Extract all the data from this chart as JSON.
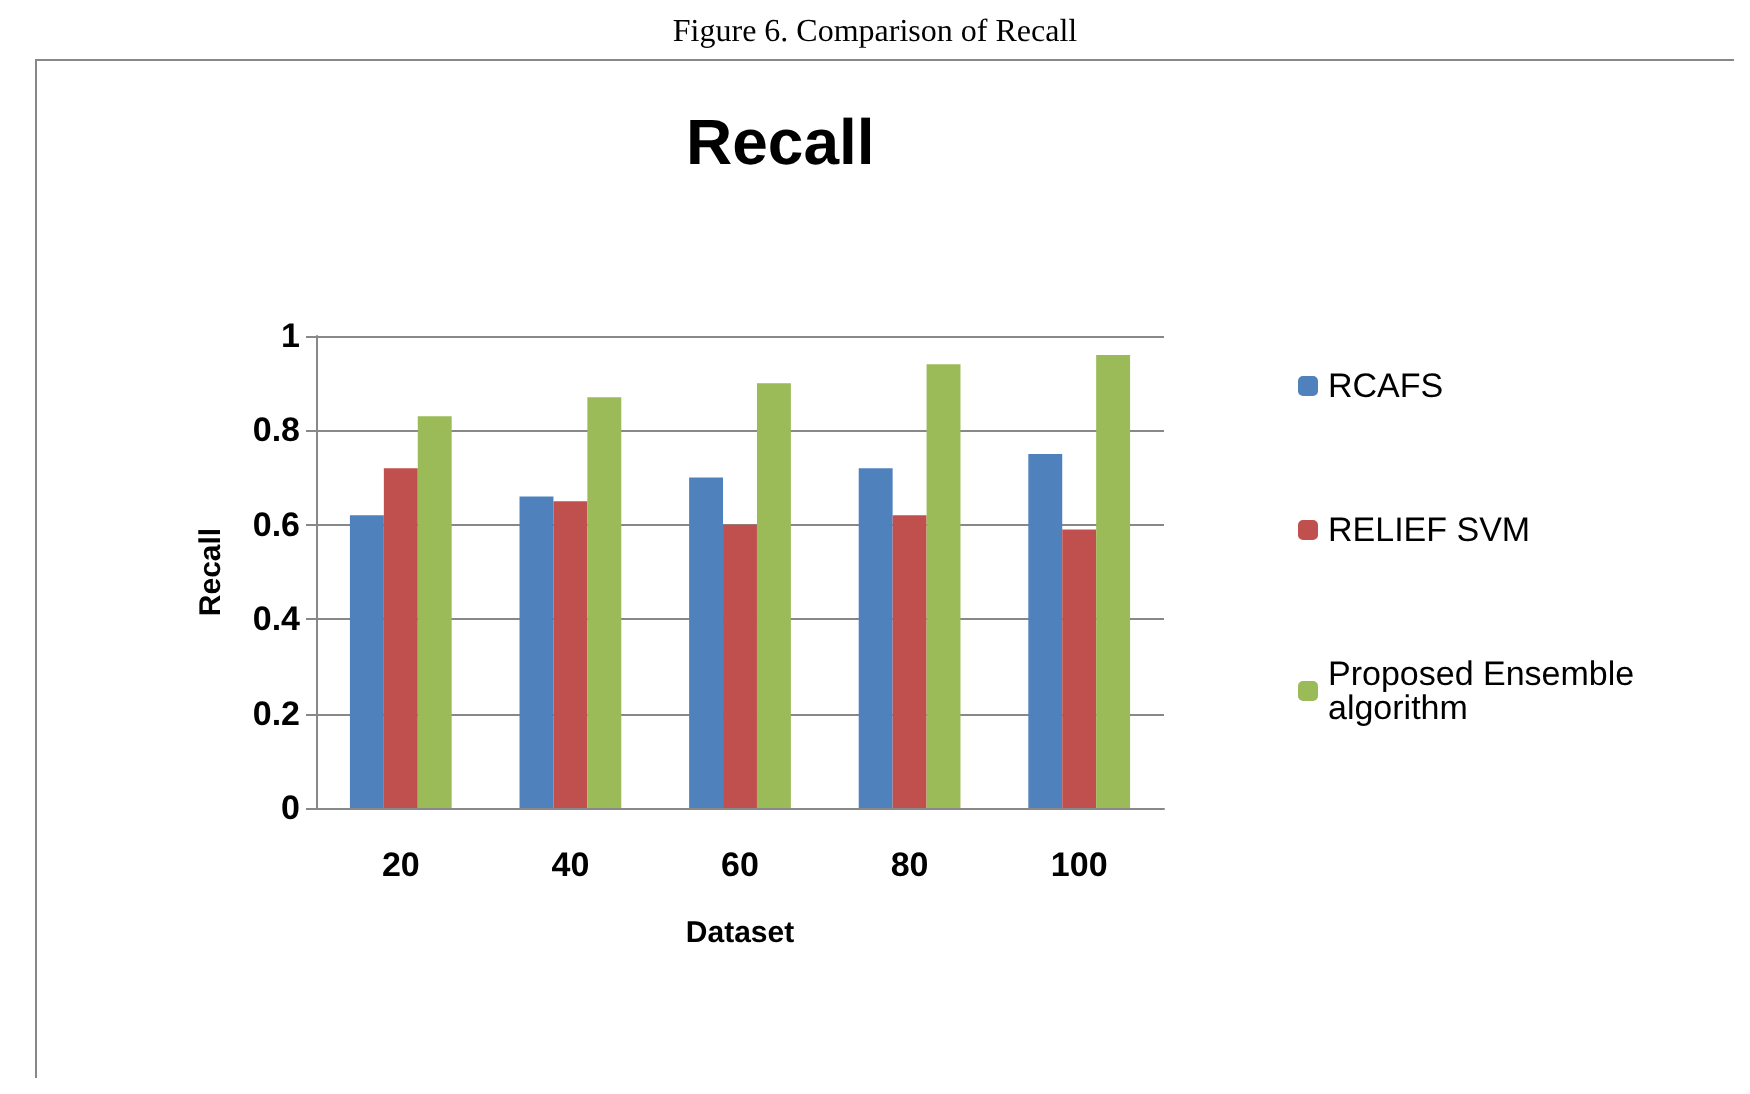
{
  "chart_data": {
    "type": "bar",
    "title": "Recall",
    "xlabel": "Dataset",
    "ylabel": "Recall",
    "annotations": [
      "Figure 6. Comparison of Recall"
    ],
    "categories": [
      "20",
      "40",
      "60",
      "80",
      "100"
    ],
    "series": [
      {
        "name": "RCAFS",
        "color": "#4f81bd",
        "values": [
          0.62,
          0.66,
          0.7,
          0.72,
          0.75
        ]
      },
      {
        "name": "RELIEF SVM",
        "color": "#c0504d",
        "values": [
          0.72,
          0.65,
          0.6,
          0.62,
          0.59
        ]
      },
      {
        "name": "Proposed Ensemble algorithm",
        "color": "#9bbb59",
        "values": [
          0.83,
          0.87,
          0.9,
          0.94,
          0.96
        ]
      }
    ],
    "ylim": [
      0,
      1
    ],
    "yticks": [
      0,
      0.2,
      0.4,
      0.6,
      0.8,
      1
    ],
    "grid": "y",
    "legend": "right"
  }
}
